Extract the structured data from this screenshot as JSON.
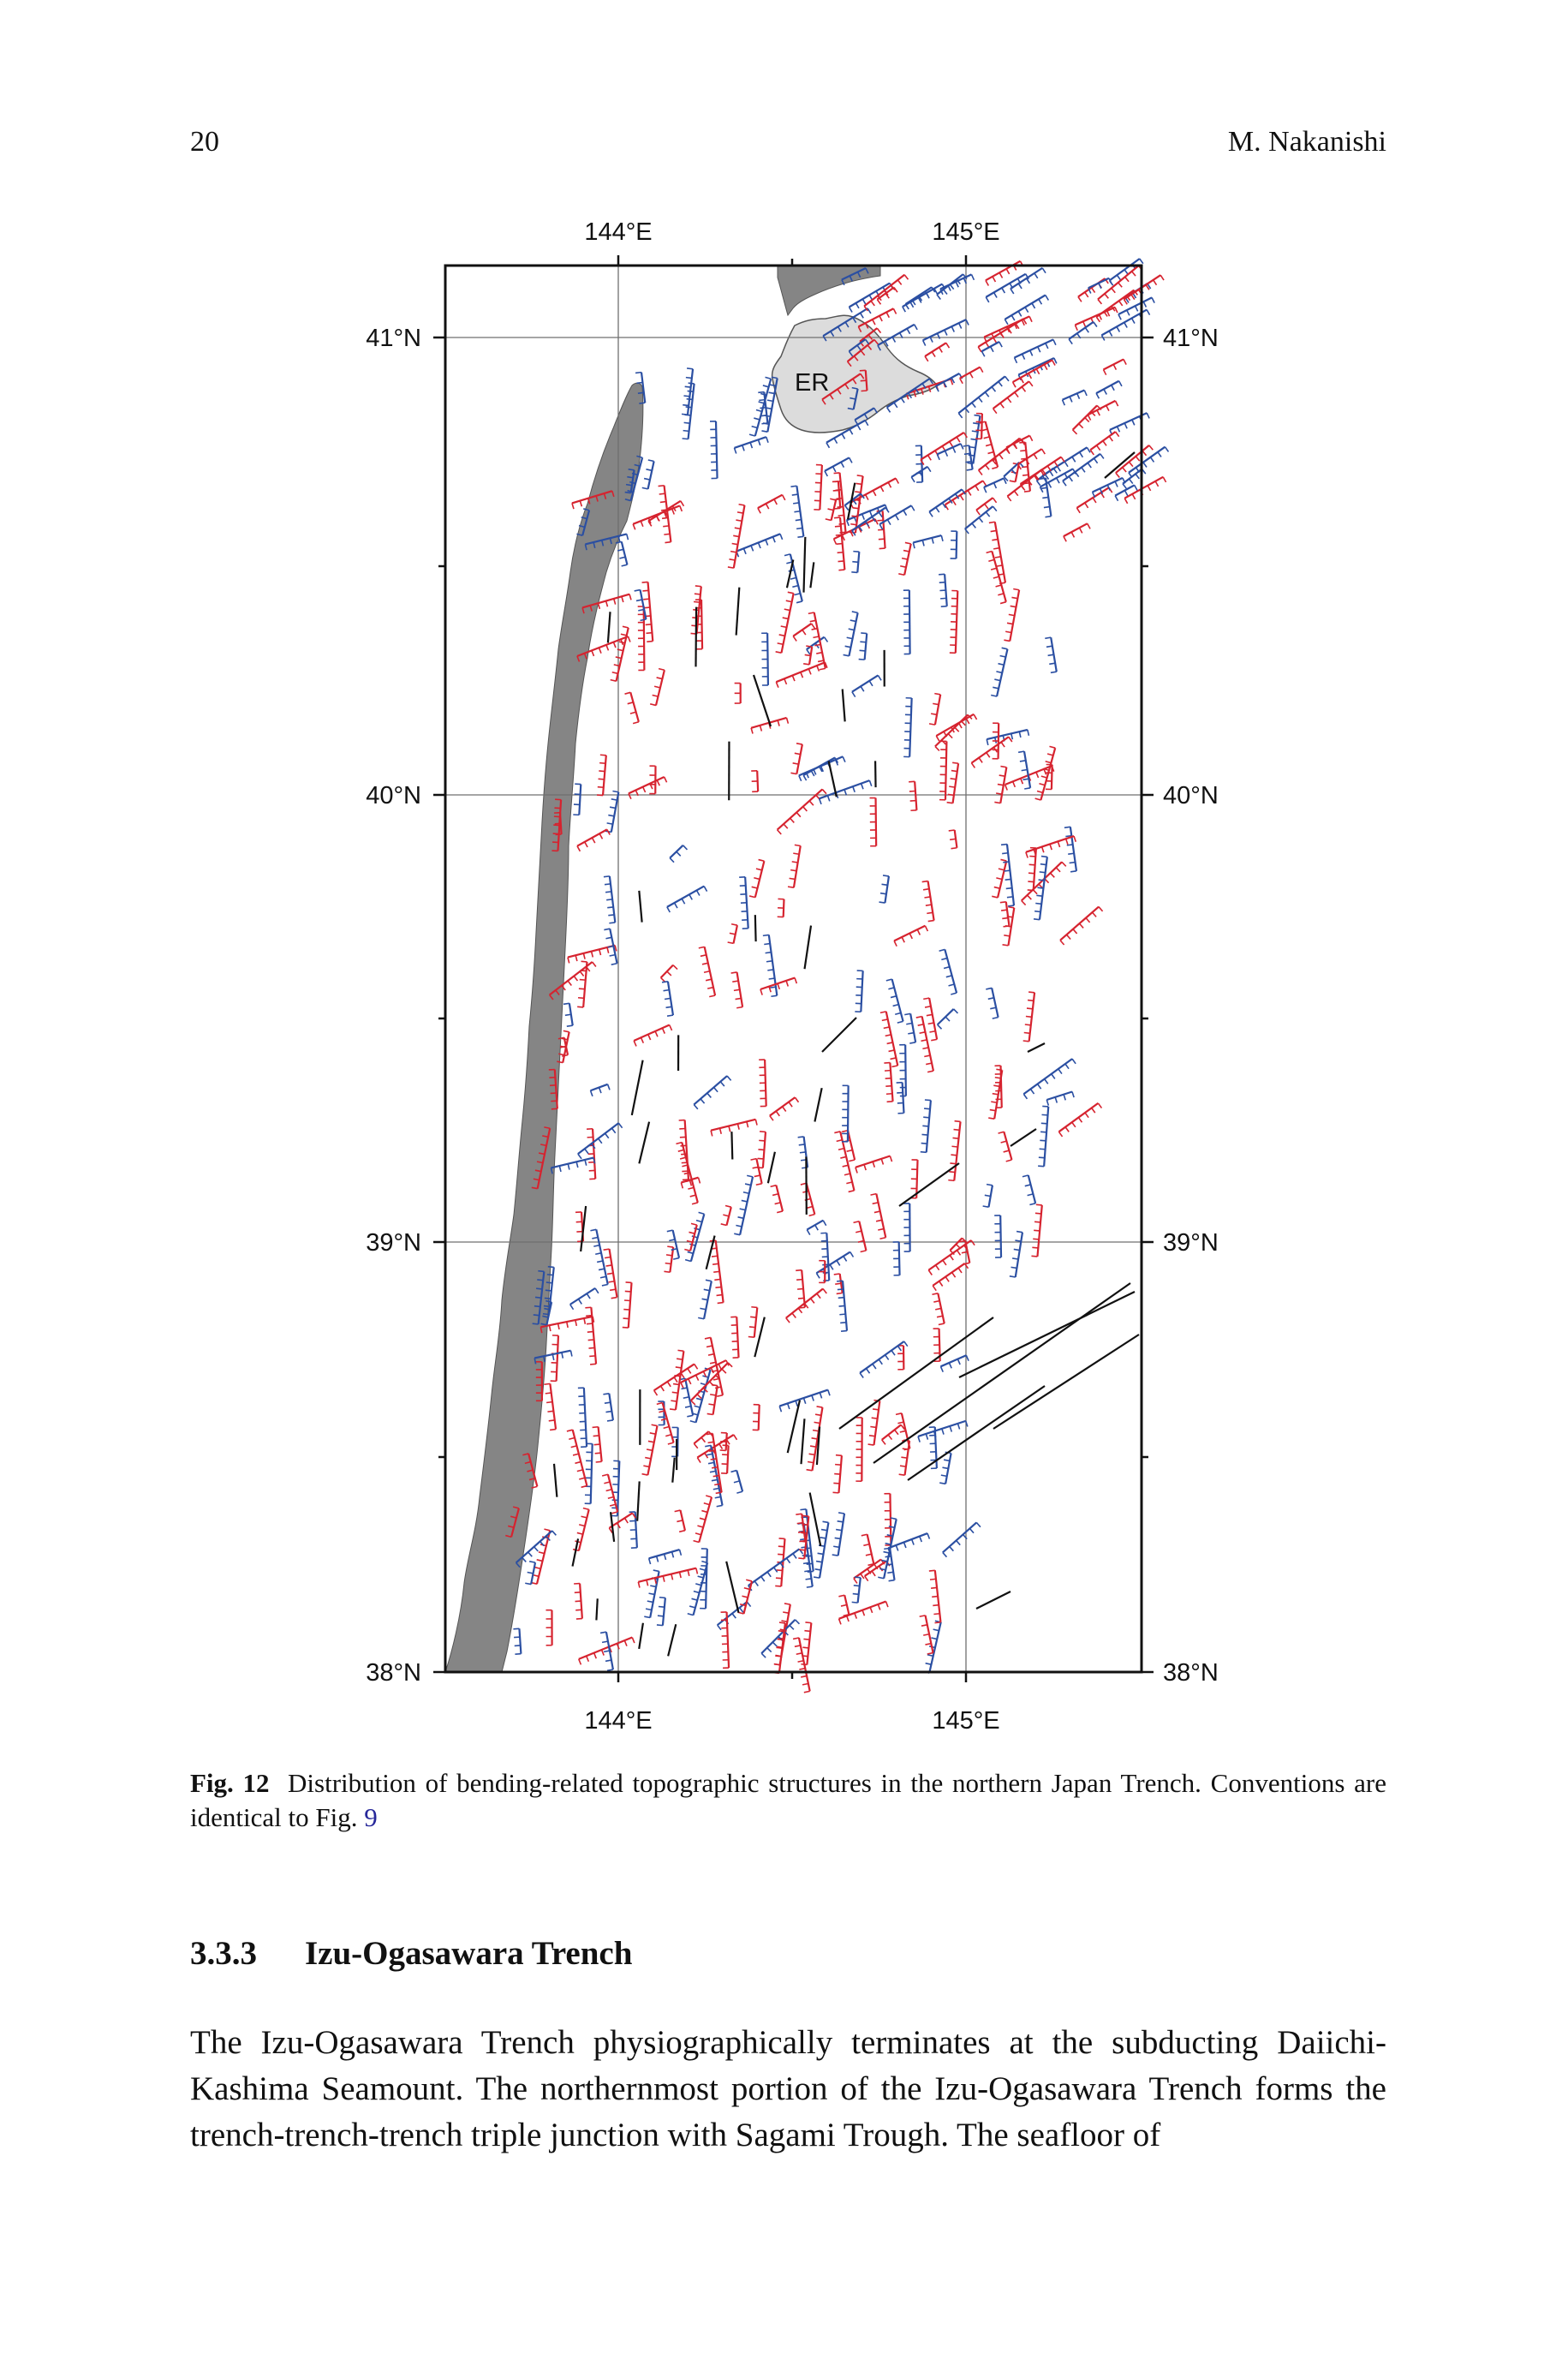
{
  "header": {
    "page_number": "20",
    "author": "M. Nakanishi"
  },
  "figure": {
    "lon_labels_top": [
      "144°E",
      "145°E"
    ],
    "lon_labels_bottom": [
      "144°E",
      "145°E"
    ],
    "lat_labels": [
      "41°N",
      "40°N",
      "39°N",
      "38°N"
    ],
    "region_label": "ER",
    "colors": {
      "land": "#858585",
      "er_region": "#dcdcdc",
      "red_structures": "#d6232f",
      "blue_structures": "#2b4fa2",
      "black_structures": "#111111"
    }
  },
  "caption": {
    "label": "Fig. 12",
    "text": "Distribution of bending-related topographic structures in the northern Japan Trench. Conventions are identical to Fig.",
    "ref": "9"
  },
  "section": {
    "number": "3.3.3",
    "title": "Izu-Ogasawara Trench"
  },
  "paragraph": "The Izu-Ogasawara Trench physiographically terminates at the subducting Daiichi-Kashima Seamount. The northernmost portion of the Izu-Ogasawara Trench forms the trench-trench-trench triple junction with Sagami Trough. The seafloor of"
}
